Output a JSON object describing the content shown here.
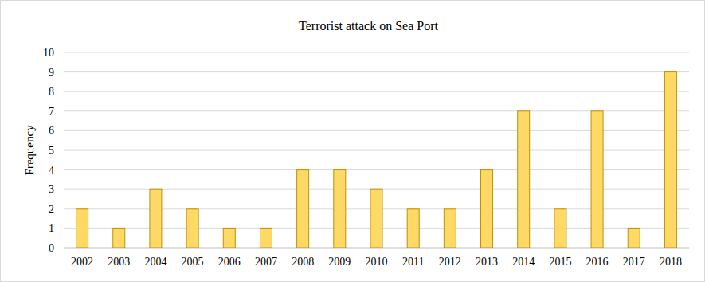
{
  "chart_data": {
    "type": "bar",
    "title": "Terrorist attack on Sea Port",
    "y_label": "Frequency",
    "categories": [
      "2002",
      "2003",
      "2004",
      "2005",
      "2006",
      "2007",
      "2008",
      "2009",
      "2010",
      "2011",
      "2012",
      "2013",
      "2014",
      "2015",
      "2016",
      "2017",
      "2018"
    ],
    "values": [
      2,
      1,
      3,
      2,
      1,
      1,
      4,
      4,
      3,
      2,
      2,
      4,
      7,
      2,
      7,
      1,
      9
    ],
    "color": "#ffd966",
    "ylim": [
      0,
      10
    ],
    "yticks": [
      0,
      1,
      2,
      3,
      4,
      5,
      6,
      7,
      8,
      9,
      10
    ],
    "grid": true
  }
}
